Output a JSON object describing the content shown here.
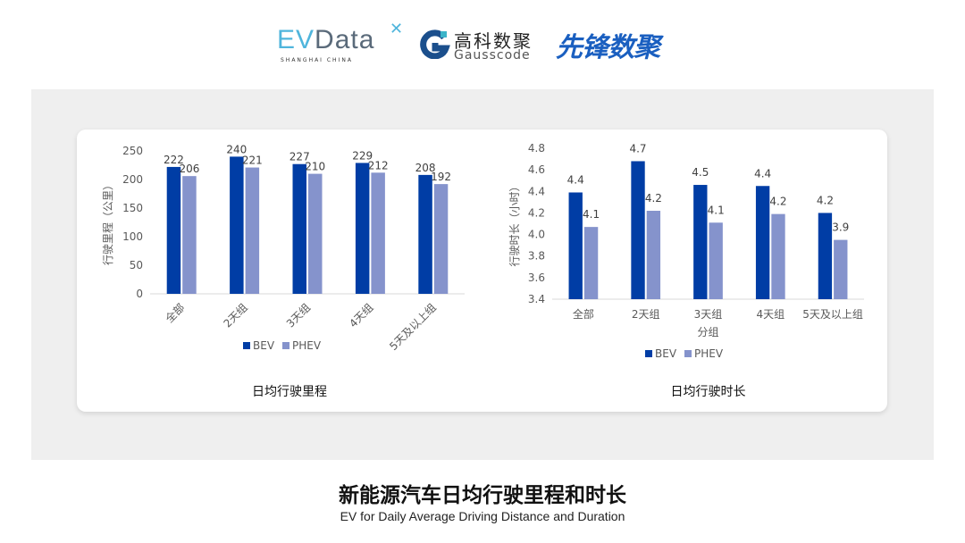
{
  "logos": {
    "evdata": {
      "text_ev": "EV",
      "text_data": "Data",
      "sub": "SHANGHAI CHINA"
    },
    "gausscode": {
      "name": "高科数聚",
      "sub": "Gausscode"
    },
    "xianfeng": "先锋数聚"
  },
  "colors": {
    "BEV": "#003da5",
    "PHEV": "#8593cc",
    "panel": "#efefef"
  },
  "chart_data": [
    {
      "type": "bar",
      "title": "日均行驶里程",
      "ylabel": "行驶里程（公里）",
      "xlabel": "",
      "ylim": [
        0,
        250
      ],
      "yticks": [
        0,
        50,
        100,
        150,
        200,
        250
      ],
      "grid": false,
      "legend": "bottom",
      "categories": [
        "全部",
        "2天组",
        "3天组",
        "4天组",
        "5天及以上组"
      ],
      "series": [
        {
          "name": "BEV",
          "values": [
            222,
            240,
            227,
            229,
            208
          ],
          "labels": [
            "222",
            "240",
            "227",
            "229",
            "208"
          ]
        },
        {
          "name": "PHEV",
          "values": [
            206,
            221,
            210,
            212,
            192
          ],
          "labels": [
            "206",
            "221",
            "210",
            "212",
            "192"
          ]
        }
      ]
    },
    {
      "type": "bar",
      "title": "日均行驶时长",
      "ylabel": "行驶时长（小时）",
      "xlabel": "分组",
      "ylim": [
        3.4,
        4.8
      ],
      "yticks": [
        "3.4",
        "3.6",
        "3.8",
        "4.0",
        "4.2",
        "4.4",
        "4.6",
        "4.8"
      ],
      "grid": false,
      "legend": "bottom",
      "categories": [
        "全部",
        "2天组",
        "3天组",
        "4天组",
        "5天及以上组"
      ],
      "series": [
        {
          "name": "BEV",
          "values": [
            4.39,
            4.68,
            4.46,
            4.45,
            4.2
          ],
          "labels": [
            "4.4",
            "4.7",
            "4.5",
            "4.4",
            "4.2"
          ]
        },
        {
          "name": "PHEV",
          "values": [
            4.07,
            4.22,
            4.11,
            4.19,
            3.95
          ],
          "labels": [
            "4.1",
            "4.2",
            "4.1",
            "4.2",
            "3.9"
          ]
        }
      ]
    }
  ],
  "footer": {
    "title": "新能源汽车日均行驶里程和时长",
    "subtitle": "EV for Daily Average Driving Distance and Duration"
  }
}
